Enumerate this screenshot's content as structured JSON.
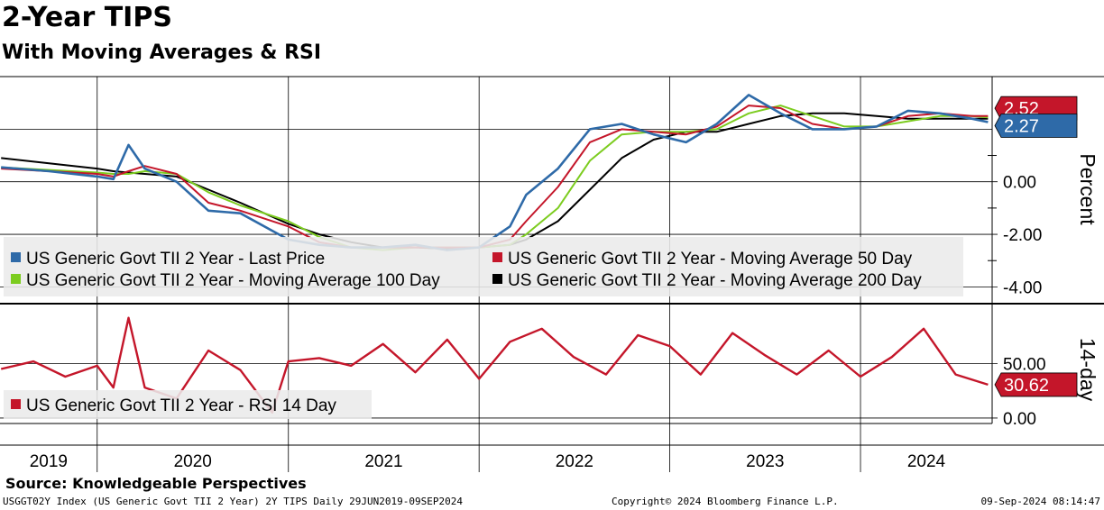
{
  "header": {
    "title": "2-Year TIPS",
    "subtitle": "With Moving Averages & RSI"
  },
  "footer": {
    "source": "Source: Knowledgeable Perspectives",
    "security": "USGGT02Y Index (US Generic Govt TII 2 Year) 2Y TIPS  Daily 29JUN2019-09SEP2024",
    "copyright": "Copyright© 2024 Bloomberg Finance L.P.",
    "timestamp": "09-Sep-2024 08:14:47"
  },
  "colors": {
    "last_price": "#2e6aa8",
    "ma50": "#c4162a",
    "ma100": "#7ccc1f",
    "ma200": "#000000",
    "rsi": "#c4162a"
  },
  "chart_data": [
    {
      "type": "line",
      "panel": "price",
      "ylabel": "Percent",
      "ylim": [
        -4.5,
        4.0
      ],
      "yticks": [
        -4.0,
        -2.0,
        0.0
      ],
      "ytick_labels": [
        "-4.00",
        "-2.00",
        "0.00"
      ],
      "grid": true,
      "legend_position": "bottom-left",
      "x_categories": [
        "2019",
        "2020",
        "2021",
        "2022",
        "2023",
        "2024"
      ],
      "x_range": [
        "2019-06-29",
        "2024-09-09"
      ],
      "x": [
        "2019-07",
        "2019-10",
        "2020-01",
        "2020-02",
        "2020-03",
        "2020-04",
        "2020-06",
        "2020-08",
        "2020-10",
        "2021-01",
        "2021-03",
        "2021-05",
        "2021-07",
        "2021-09",
        "2021-11",
        "2022-01",
        "2022-03",
        "2022-04",
        "2022-06",
        "2022-08",
        "2022-10",
        "2022-12",
        "2023-02",
        "2023-04",
        "2023-06",
        "2023-08",
        "2023-10",
        "2023-12",
        "2024-02",
        "2024-04",
        "2024-06",
        "2024-08",
        "2024-09"
      ],
      "series": [
        {
          "name": "US Generic Govt TII 2 Year - Last Price",
          "values": [
            0.55,
            0.4,
            0.2,
            0.1,
            1.4,
            0.5,
            0.0,
            -1.1,
            -1.2,
            -2.2,
            -2.4,
            -2.5,
            -2.5,
            -2.4,
            -2.6,
            -2.5,
            -1.7,
            -0.5,
            0.5,
            2.0,
            2.2,
            1.8,
            1.5,
            2.2,
            3.3,
            2.6,
            2.0,
            2.0,
            2.1,
            2.7,
            2.6,
            2.4,
            2.27
          ]
        },
        {
          "name": "US Generic Govt TII 2 Year - Moving Average 50 Day",
          "values": [
            0.5,
            0.4,
            0.3,
            0.2,
            0.4,
            0.6,
            0.3,
            -0.8,
            -1.1,
            -1.7,
            -2.3,
            -2.5,
            -2.5,
            -2.5,
            -2.5,
            -2.5,
            -2.2,
            -1.5,
            -0.2,
            1.5,
            2.0,
            1.9,
            1.8,
            2.1,
            2.9,
            2.8,
            2.2,
            2.0,
            2.1,
            2.5,
            2.6,
            2.5,
            2.5
          ]
        },
        {
          "name": "US Generic Govt TII 2 Year - Moving Average 100 Day",
          "values": [
            0.55,
            0.45,
            0.35,
            0.3,
            0.3,
            0.4,
            0.3,
            -0.4,
            -0.9,
            -1.5,
            -2.1,
            -2.5,
            -2.6,
            -2.5,
            -2.5,
            -2.5,
            -2.4,
            -2.0,
            -1.0,
            0.8,
            1.8,
            1.9,
            1.9,
            2.0,
            2.6,
            2.9,
            2.5,
            2.1,
            2.1,
            2.3,
            2.5,
            2.5,
            2.45
          ]
        },
        {
          "name": "US Generic Govt TII 2 Year - Moving Average 200 Day",
          "values": [
            0.9,
            0.7,
            0.5,
            0.4,
            0.35,
            0.3,
            0.2,
            -0.3,
            -0.8,
            -1.6,
            -2.0,
            -2.3,
            -2.5,
            -2.5,
            -2.55,
            -2.5,
            -2.4,
            -2.2,
            -1.5,
            -0.3,
            0.9,
            1.6,
            1.9,
            1.9,
            2.2,
            2.5,
            2.6,
            2.6,
            2.5,
            2.4,
            2.4,
            2.4,
            2.4
          ]
        }
      ],
      "last_value_labels": [
        {
          "series": "US Generic Govt TII 2 Year - Last Price",
          "label": "2.27"
        },
        {
          "series": "US Generic Govt TII 2 Year - Moving Average 50 Day",
          "label": "2.52"
        }
      ]
    },
    {
      "type": "line",
      "panel": "rsi",
      "ylabel": "14-day",
      "ylim": [
        -5,
        100
      ],
      "yticks": [
        0,
        50
      ],
      "ytick_labels": [
        "0.00",
        "50.00"
      ],
      "grid": true,
      "legend_position": "bottom-left",
      "x": [
        "2019-07",
        "2019-09",
        "2019-11",
        "2020-01",
        "2020-02",
        "2020-03",
        "2020-04",
        "2020-06",
        "2020-08",
        "2020-10",
        "2020-12",
        "2021-01",
        "2021-03",
        "2021-05",
        "2021-07",
        "2021-09",
        "2021-11",
        "2022-01",
        "2022-03",
        "2022-05",
        "2022-07",
        "2022-09",
        "2022-11",
        "2023-01",
        "2023-03",
        "2023-05",
        "2023-07",
        "2023-09",
        "2023-11",
        "2024-01",
        "2024-03",
        "2024-05",
        "2024-07",
        "2024-09"
      ],
      "series": [
        {
          "name": "US Generic Govt TII 2 Year - RSI 14 Day",
          "values": [
            45,
            52,
            38,
            48,
            28,
            92,
            28,
            18,
            62,
            44,
            5,
            52,
            55,
            48,
            68,
            42,
            72,
            36,
            70,
            82,
            56,
            40,
            76,
            66,
            40,
            78,
            58,
            40,
            62,
            38,
            56,
            82,
            40,
            30.62
          ]
        }
      ],
      "last_value_labels": [
        {
          "series": "US Generic Govt TII 2 Year - RSI 14 Day",
          "label": "30.62"
        }
      ]
    }
  ]
}
